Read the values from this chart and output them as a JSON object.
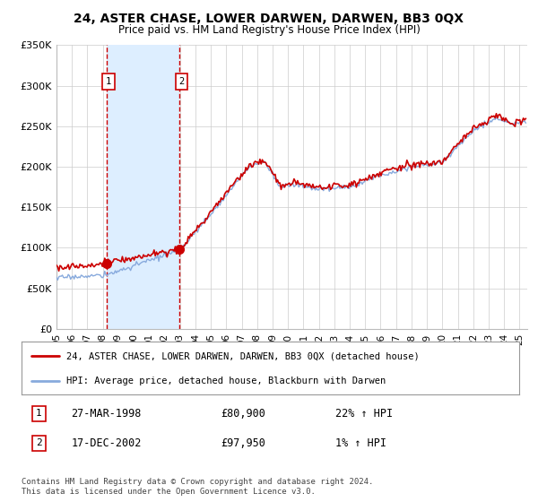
{
  "title": "24, ASTER CHASE, LOWER DARWEN, DARWEN, BB3 0QX",
  "subtitle": "Price paid vs. HM Land Registry's House Price Index (HPI)",
  "legend_line1": "24, ASTER CHASE, LOWER DARWEN, DARWEN, BB3 0QX (detached house)",
  "legend_line2": "HPI: Average price, detached house, Blackburn with Darwen",
  "footer": "Contains HM Land Registry data © Crown copyright and database right 2024.\nThis data is licensed under the Open Government Licence v3.0.",
  "sale1_date": "27-MAR-1998",
  "sale1_price": "£80,900",
  "sale1_hpi": "22% ↑ HPI",
  "sale1_year": 1998.23,
  "sale1_value": 80900,
  "sale2_date": "17-DEC-2002",
  "sale2_price": "£97,950",
  "sale2_hpi": "1% ↑ HPI",
  "sale2_year": 2002.96,
  "sale2_value": 97950,
  "hpi_color": "#88aadd",
  "price_color": "#cc0000",
  "vline_color": "#cc0000",
  "shade_color": "#ddeeff",
  "ylim": [
    0,
    350000
  ],
  "xlim_start": 1995.0,
  "xlim_end": 2025.5,
  "yticks": [
    0,
    50000,
    100000,
    150000,
    200000,
    250000,
    300000,
    350000
  ],
  "ytick_labels": [
    "£0",
    "£50K",
    "£100K",
    "£150K",
    "£200K",
    "£250K",
    "£300K",
    "£350K"
  ],
  "xtick_labels": [
    "95",
    "96",
    "97",
    "98",
    "99",
    "00",
    "01",
    "02",
    "03",
    "04",
    "05",
    "06",
    "07",
    "08",
    "09",
    "10",
    "11",
    "12",
    "13",
    "14",
    "15",
    "16",
    "17",
    "18",
    "19",
    "20",
    "21",
    "22",
    "23",
    "24",
    "25"
  ],
  "xticks": [
    1995,
    1996,
    1997,
    1998,
    1999,
    2000,
    2001,
    2002,
    2003,
    2004,
    2005,
    2006,
    2007,
    2008,
    2009,
    2010,
    2011,
    2012,
    2013,
    2014,
    2015,
    2016,
    2017,
    2018,
    2019,
    2020,
    2021,
    2022,
    2023,
    2024,
    2025
  ],
  "background_color": "#ffffff",
  "grid_color": "#cccccc"
}
